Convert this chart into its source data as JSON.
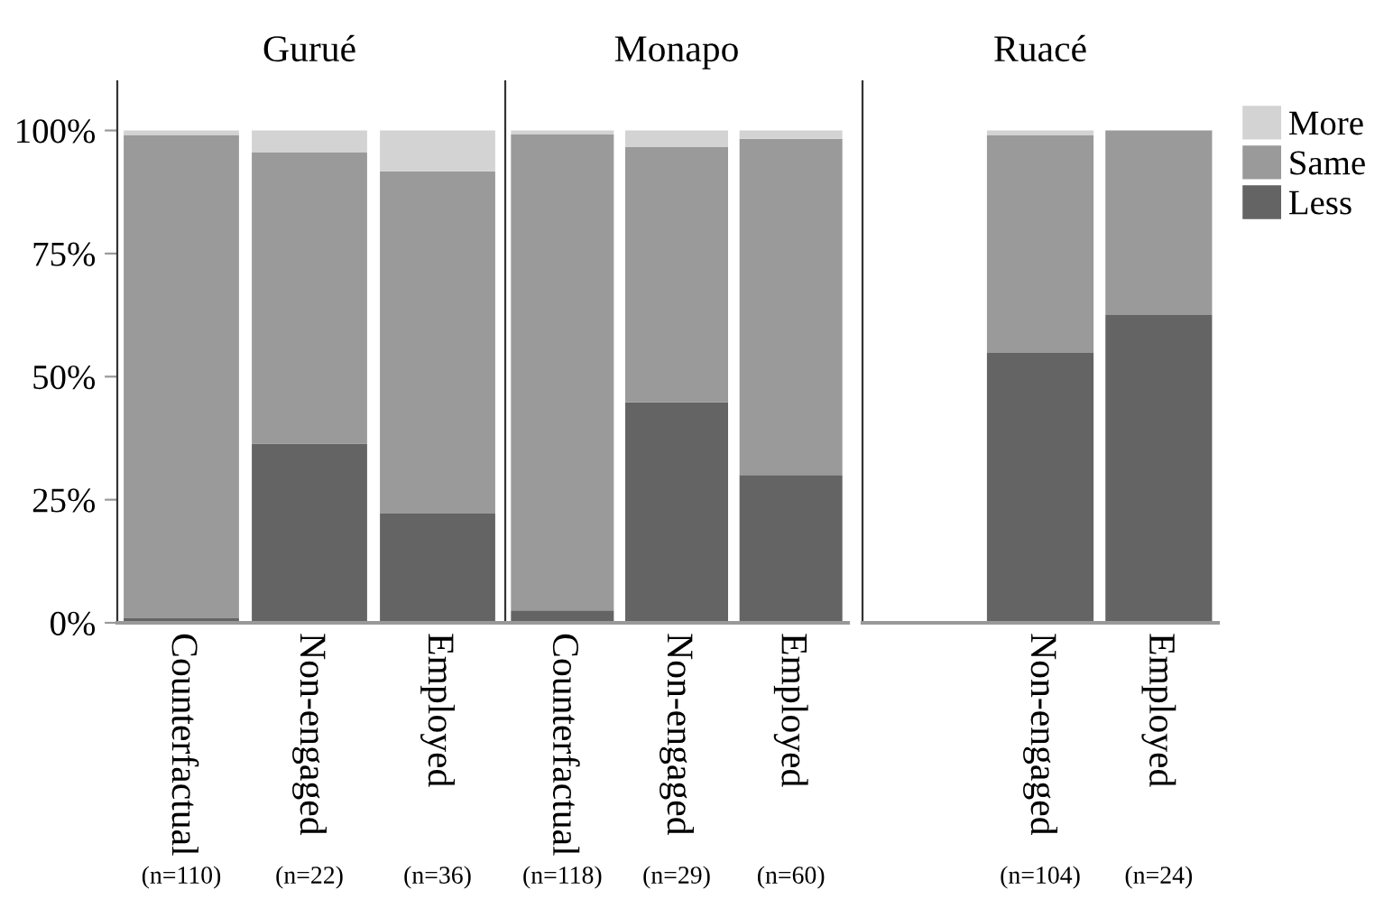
{
  "chart_data": [
    {
      "type": "bar",
      "title": "Gurué",
      "stacked": true,
      "categories": [
        "Counterfactual",
        "Non-engaged",
        "Employed"
      ],
      "series": [
        {
          "color": "#646464",
          "values": [
            0.9,
            36.4,
            22.2
          ]
        },
        {
          "color": "#9a9a9a",
          "values": [
            98.2,
            59.1,
            69.5
          ]
        },
        {
          "color": "#d3d3d3",
          "values": [
            0.9,
            4.5,
            8.3
          ]
        }
      ],
      "ylim": [
        0,
        110
      ],
      "yticks": [
        {
          "value": 0,
          "label": "0%"
        },
        {
          "value": 25,
          "label": "25%"
        },
        {
          "value": 50,
          "label": "50%"
        },
        {
          "value": 75,
          "label": "75%"
        },
        {
          "value": 100,
          "label": "100%"
        }
      ],
      "annotations": [
        "(n=110)",
        "(n=22)",
        "(n=36)"
      ]
    },
    {
      "type": "bar",
      "title": "Monapo",
      "stacked": true,
      "categories": [
        "Counterfactual",
        "Non-engaged",
        "Employed"
      ],
      "series": [
        {
          "color": "#646464",
          "values": [
            2.5,
            44.8,
            30.0
          ]
        },
        {
          "color": "#9a9a9a",
          "values": [
            96.7,
            51.8,
            68.3
          ]
        },
        {
          "color": "#d3d3d3",
          "values": [
            0.8,
            3.4,
            1.7
          ]
        }
      ],
      "ylim": [
        0,
        110
      ],
      "tick_labels": "x",
      "annotations": [
        "(n=118)",
        "(n=29)",
        "(n=60)"
      ]
    },
    {
      "type": "bar",
      "title": "Ruacé",
      "stacked": true,
      "categories": [
        null,
        "Non-engaged",
        "Employed"
      ],
      "series": [
        {
          "name": "Less",
          "color": "#646464",
          "values": [
            null,
            54.8,
            62.5
          ]
        },
        {
          "name": "Same",
          "color": "#9a9a9a",
          "values": [
            null,
            44.2,
            37.5
          ]
        },
        {
          "name": "More",
          "color": "#d3d3d3",
          "values": [
            null,
            1.0,
            0
          ]
        }
      ],
      "ylim": [
        0,
        110
      ],
      "tick_labels": "x",
      "legend": "top right",
      "annotations": [
        "(n=104)",
        "(n=24)"
      ]
    }
  ]
}
